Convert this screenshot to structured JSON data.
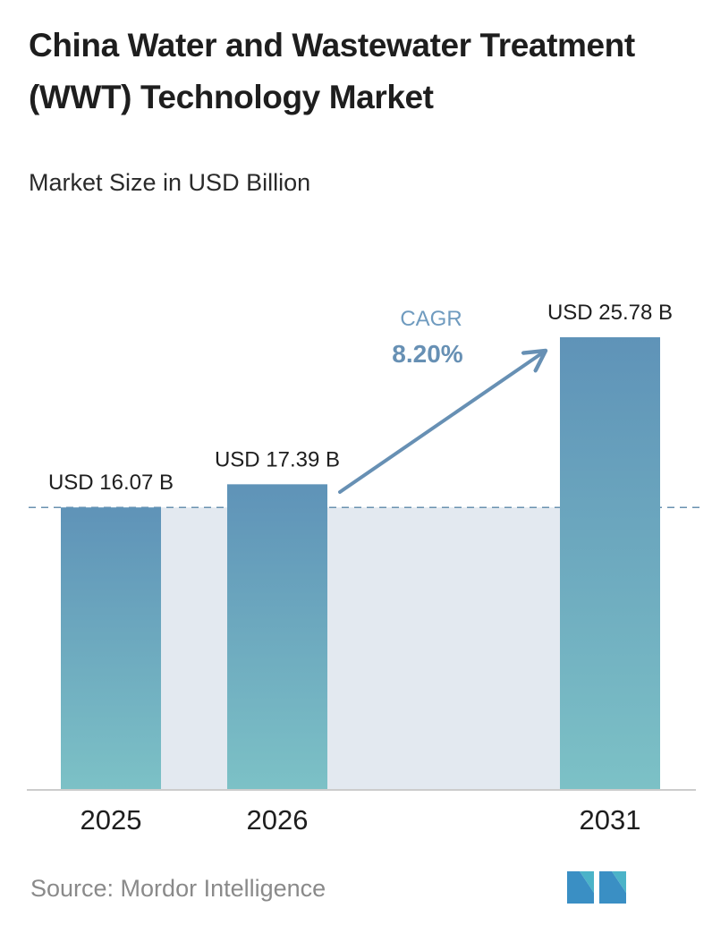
{
  "header": {
    "title": "China Water and Wastewater Treatment (WWT) Technology Market",
    "subtitle": "Market Size in USD Billion"
  },
  "chart_data": {
    "type": "bar",
    "title": "China Water and Wastewater Treatment (WWT) Technology Market",
    "subtitle": "Market Size in USD Billion",
    "categories": [
      "2025",
      "2026",
      "2031"
    ],
    "values": [
      16.07,
      17.39,
      25.78
    ],
    "value_labels": [
      "USD 16.07 B",
      "USD 17.39 B",
      "USD 25.78 B"
    ],
    "xlabel": "",
    "ylabel": "",
    "ylim": [
      0,
      28
    ],
    "grid": false,
    "annotation": {
      "label": "CAGR",
      "value": "8.20%"
    },
    "colors": {
      "bar_top": "#5f93b8",
      "bar_bottom": "#7cc1c6",
      "band": "#e3e9f0",
      "dashed_line": "#6a92b0",
      "arrow": "#6790b4",
      "axis": "#cccccc"
    }
  },
  "footer": {
    "source": "Source:  Mordor Intelligence",
    "logo_icon": "mordor-intelligence-logo-icon"
  }
}
